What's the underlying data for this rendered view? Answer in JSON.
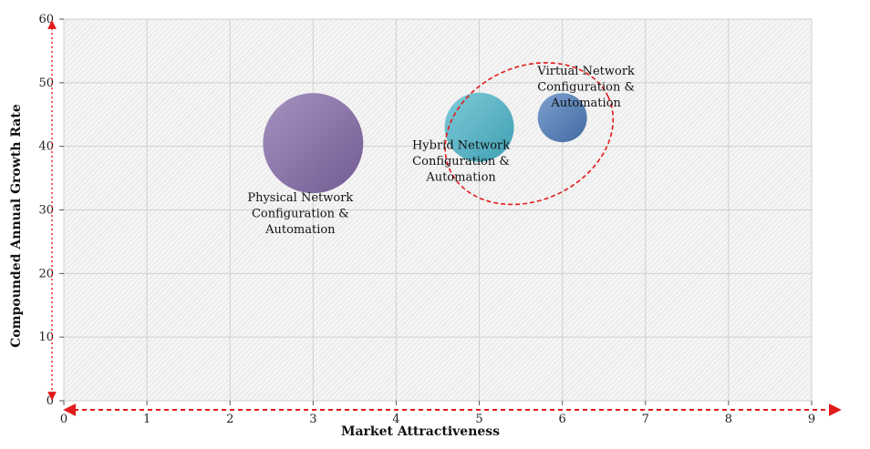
{
  "chart_data": {
    "type": "bubble",
    "xlabel": "Market Attractiveness",
    "ylabel": "Compounded  Annual  Growth Rate",
    "xlim": [
      0,
      9
    ],
    "ylim": [
      0,
      60
    ],
    "x_ticks": [
      0,
      1,
      2,
      3,
      4,
      5,
      6,
      7,
      8,
      9
    ],
    "y_ticks": [
      0,
      10,
      20,
      30,
      40,
      50,
      60
    ],
    "grid": true,
    "points": [
      {
        "label": [
          "Physical Network",
          "Configuration &",
          "Automation"
        ],
        "x": 3,
        "y": 40.5,
        "size": 55,
        "color": "#8a74a8"
      },
      {
        "label": [
          "Hybrid Network",
          "Configuration &",
          "Automation"
        ],
        "x": 5,
        "y": 43,
        "size": 38,
        "color": "#5ab4c6"
      },
      {
        "label": [
          "Virtual Network",
          "Configuration &",
          "Automation"
        ],
        "x": 6,
        "y": 44.5,
        "size": 27,
        "color": "#5b82b8"
      }
    ],
    "highlight": {
      "cx": 5.6,
      "cy": 42,
      "rx": 1.05,
      "ry": 10.5,
      "angle": -25,
      "color": "#e31b1b"
    }
  }
}
